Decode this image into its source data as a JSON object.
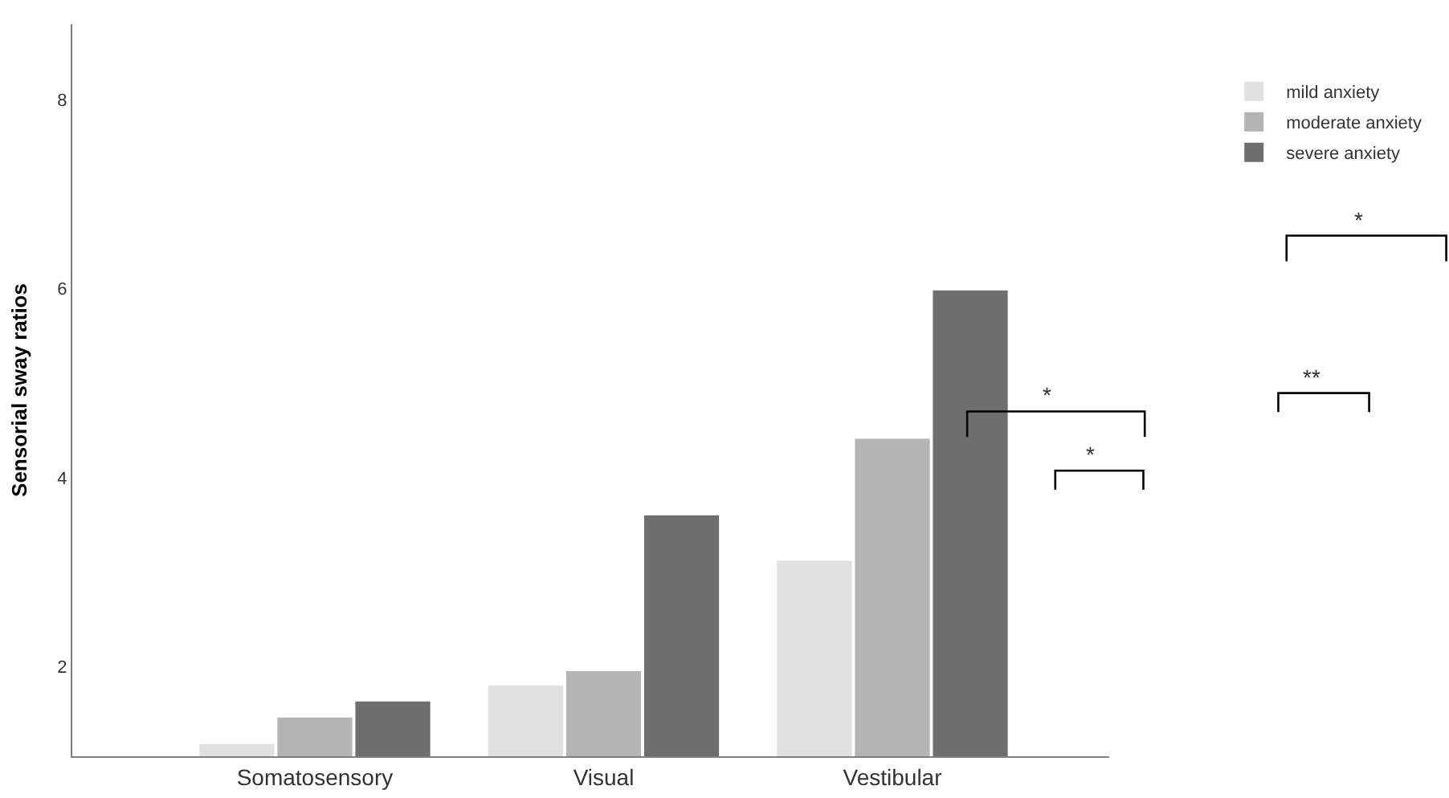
{
  "chart_data": {
    "type": "bar",
    "ylabel": "Sensorial sway ratios",
    "categories": [
      "Somatosensory",
      "Visual",
      "Vestibular"
    ],
    "series": [
      {
        "name": "mild anxiety",
        "color": "#e0e0e0",
        "values": [
          1.18,
          1.8,
          3.12
        ]
      },
      {
        "name": "moderate anxiety",
        "color": "#b4b4b4",
        "values": [
          1.46,
          1.95,
          4.41
        ]
      },
      {
        "name": "severe anxiety",
        "color": "#6e6e6e",
        "values": [
          1.63,
          3.6,
          5.98
        ]
      }
    ],
    "ylim": [
      1.05,
      8.8
    ],
    "yticks": [
      2,
      4,
      6,
      8
    ],
    "legend": "top right",
    "annotations": [
      "*",
      "**",
      "*",
      "*"
    ]
  }
}
